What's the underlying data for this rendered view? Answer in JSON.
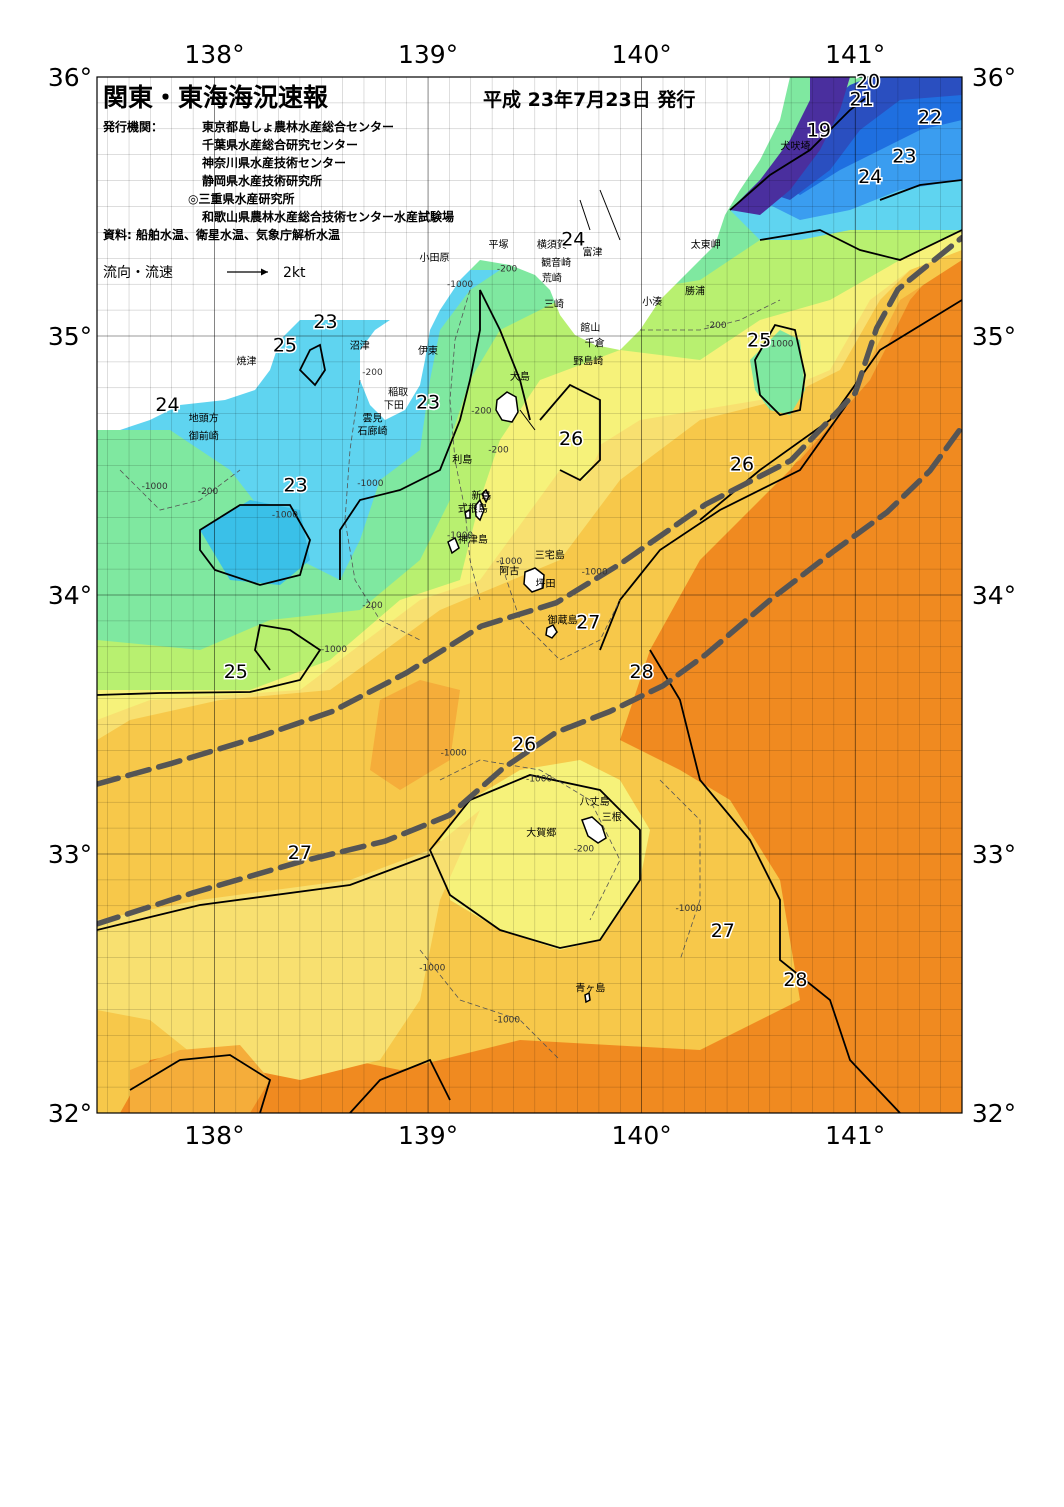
{
  "header": {
    "title": "関東・東海海況速報",
    "date": "平成 23年7月23日 発行",
    "org_label": "発行機関：",
    "orgs": [
      "東京都島しょ農林水産総合センター",
      "千葉県水産総合研究センター",
      "神奈川県水産技術センター",
      "静岡県水産技術研究所",
      "◎三重県水産研究所",
      "和歌山県農林水産総合技術センター水産試験場"
    ],
    "source": "資料: 船舶水温、衛星水温、気象庁解析水温",
    "legend_label": "流向・流速",
    "legend_speed": "2kt"
  },
  "axes": {
    "lon_labels": [
      "138°",
      "139°",
      "140°",
      "141°"
    ],
    "lat_labels": [
      "36°",
      "35°",
      "34°",
      "33°",
      "32°"
    ],
    "lon_range": [
      137.45,
      141.5
    ],
    "lat_range": [
      32.0,
      36.0
    ]
  },
  "places": [
    {
      "name": "犬吠埼",
      "lon": 140.72,
      "lat": 35.72
    },
    {
      "name": "太東岬",
      "lon": 140.3,
      "lat": 35.34
    },
    {
      "name": "勝浦",
      "lon": 140.25,
      "lat": 35.16
    },
    {
      "name": "小湊",
      "lon": 140.05,
      "lat": 35.12
    },
    {
      "name": "富津",
      "lon": 139.77,
      "lat": 35.31
    },
    {
      "name": "横須賀",
      "lon": 139.58,
      "lat": 35.34
    },
    {
      "name": "平塚",
      "lon": 139.33,
      "lat": 35.34
    },
    {
      "name": "小田原",
      "lon": 139.03,
      "lat": 35.29
    },
    {
      "name": "観音崎",
      "lon": 139.6,
      "lat": 35.27
    },
    {
      "name": "荒崎",
      "lon": 139.58,
      "lat": 35.21
    },
    {
      "name": "三崎",
      "lon": 139.59,
      "lat": 35.11
    },
    {
      "name": "館山",
      "lon": 139.76,
      "lat": 35.02
    },
    {
      "name": "千倉",
      "lon": 139.78,
      "lat": 34.96
    },
    {
      "name": "野島崎",
      "lon": 139.75,
      "lat": 34.89
    },
    {
      "name": "沼津",
      "lon": 138.68,
      "lat": 34.95
    },
    {
      "name": "伊東",
      "lon": 139.0,
      "lat": 34.93
    },
    {
      "name": "焼津",
      "lon": 138.15,
      "lat": 34.89
    },
    {
      "name": "大島",
      "lon": 139.43,
      "lat": 34.83
    },
    {
      "name": "稲取",
      "lon": 138.86,
      "lat": 34.77
    },
    {
      "name": "下田",
      "lon": 138.84,
      "lat": 34.72
    },
    {
      "name": "雲見",
      "lon": 138.74,
      "lat": 34.67
    },
    {
      "name": "石廊崎",
      "lon": 138.74,
      "lat": 34.62
    },
    {
      "name": "地頭方",
      "lon": 137.95,
      "lat": 34.67
    },
    {
      "name": "御前崎",
      "lon": 137.95,
      "lat": 34.6
    },
    {
      "name": "利島",
      "lon": 139.16,
      "lat": 34.51
    },
    {
      "name": "新島",
      "lon": 139.25,
      "lat": 34.37
    },
    {
      "name": "式根島",
      "lon": 139.21,
      "lat": 34.32
    },
    {
      "name": "神津島",
      "lon": 139.21,
      "lat": 34.2
    },
    {
      "name": "三宅島",
      "lon": 139.57,
      "lat": 34.14
    },
    {
      "name": "阿古",
      "lon": 139.38,
      "lat": 34.08
    },
    {
      "name": "坪田",
      "lon": 139.55,
      "lat": 34.03
    },
    {
      "name": "御蔵島",
      "lon": 139.63,
      "lat": 33.89
    },
    {
      "name": "八丈島",
      "lon": 139.78,
      "lat": 33.19
    },
    {
      "name": "三根",
      "lon": 139.86,
      "lat": 33.13
    },
    {
      "name": "大賀郷",
      "lon": 139.53,
      "lat": 33.07
    },
    {
      "name": "青ヶ島",
      "lon": 139.76,
      "lat": 32.47
    }
  ],
  "isotherm_labels": [
    {
      "text": "20",
      "lon": 141.06,
      "lat": 35.96
    },
    {
      "text": "21",
      "lon": 141.03,
      "lat": 35.89
    },
    {
      "text": "22",
      "lon": 141.35,
      "lat": 35.82
    },
    {
      "text": "19",
      "lon": 140.83,
      "lat": 35.77
    },
    {
      "text": "23",
      "lon": 141.23,
      "lat": 35.67
    },
    {
      "text": "24",
      "lon": 141.07,
      "lat": 35.59
    },
    {
      "text": "24",
      "lon": 139.68,
      "lat": 35.35
    },
    {
      "text": "23",
      "lon": 138.52,
      "lat": 35.03
    },
    {
      "text": "25",
      "lon": 138.33,
      "lat": 34.94
    },
    {
      "text": "25",
      "lon": 140.55,
      "lat": 34.96
    },
    {
      "text": "24",
      "lon": 137.78,
      "lat": 34.71
    },
    {
      "text": "23",
      "lon": 139.0,
      "lat": 34.72
    },
    {
      "text": "26",
      "lon": 139.67,
      "lat": 34.58
    },
    {
      "text": "26",
      "lon": 140.47,
      "lat": 34.48
    },
    {
      "text": "23",
      "lon": 138.38,
      "lat": 34.4
    },
    {
      "text": "27",
      "lon": 139.75,
      "lat": 33.87
    },
    {
      "text": "25",
      "lon": 138.1,
      "lat": 33.68
    },
    {
      "text": "28",
      "lon": 140.0,
      "lat": 33.68
    },
    {
      "text": "26",
      "lon": 139.45,
      "lat": 33.4
    },
    {
      "text": "27",
      "lon": 138.4,
      "lat": 32.98
    },
    {
      "text": "27",
      "lon": 140.38,
      "lat": 32.68
    },
    {
      "text": "28",
      "lon": 140.72,
      "lat": 32.49
    }
  ],
  "depth_labels": [
    {
      "text": "-200",
      "lon": 139.37,
      "lat": 35.25
    },
    {
      "text": "-1000",
      "lon": 139.15,
      "lat": 35.19
    },
    {
      "text": "-200",
      "lon": 140.35,
      "lat": 35.03
    },
    {
      "text": "-1000",
      "lon": 140.65,
      "lat": 34.96
    },
    {
      "text": "-200",
      "lon": 138.74,
      "lat": 34.85
    },
    {
      "text": "-200",
      "lon": 139.25,
      "lat": 34.7
    },
    {
      "text": "-200",
      "lon": 139.33,
      "lat": 34.55
    },
    {
      "text": "-1000",
      "lon": 137.72,
      "lat": 34.41
    },
    {
      "text": "-200",
      "lon": 137.97,
      "lat": 34.39
    },
    {
      "text": "-1000",
      "lon": 138.33,
      "lat": 34.3
    },
    {
      "text": "-1000",
      "lon": 138.73,
      "lat": 34.42
    },
    {
      "text": "-1000",
      "lon": 139.15,
      "lat": 34.22
    },
    {
      "text": "-1000",
      "lon": 139.38,
      "lat": 34.12
    },
    {
      "text": "-1000",
      "lon": 139.78,
      "lat": 34.08
    },
    {
      "text": "-200",
      "lon": 138.74,
      "lat": 33.95
    },
    {
      "text": "-1000",
      "lon": 138.56,
      "lat": 33.78
    },
    {
      "text": "-1000",
      "lon": 139.12,
      "lat": 33.38
    },
    {
      "text": "-1000",
      "lon": 139.52,
      "lat": 33.28
    },
    {
      "text": "-200",
      "lon": 139.73,
      "lat": 33.01
    },
    {
      "text": "-1000",
      "lon": 140.22,
      "lat": 32.78
    },
    {
      "text": "-1000",
      "lon": 139.02,
      "lat": 32.55
    },
    {
      "text": "-1000",
      "lon": 139.37,
      "lat": 32.35
    }
  ],
  "kuroshio_paths": [
    {
      "name": "north-edge",
      "points": [
        [
          137.45,
          33.27
        ],
        [
          137.8,
          33.35
        ],
        [
          138.2,
          33.45
        ],
        [
          138.55,
          33.55
        ],
        [
          138.9,
          33.7
        ],
        [
          139.25,
          33.88
        ],
        [
          139.6,
          33.97
        ],
        [
          139.9,
          34.12
        ],
        [
          140.3,
          34.35
        ],
        [
          140.7,
          34.52
        ],
        [
          141.0,
          34.78
        ],
        [
          141.1,
          35.03
        ],
        [
          141.2,
          35.18
        ],
        [
          141.5,
          35.38
        ]
      ]
    },
    {
      "name": "mid-axis",
      "points": [
        [
          137.45,
          32.73
        ],
        [
          137.9,
          32.85
        ],
        [
          138.4,
          32.97
        ],
        [
          138.8,
          33.05
        ],
        [
          139.1,
          33.15
        ],
        [
          139.35,
          33.33
        ],
        [
          139.6,
          33.47
        ],
        [
          139.85,
          33.55
        ],
        [
          140.1,
          33.65
        ],
        [
          140.3,
          33.77
        ],
        [
          140.6,
          33.98
        ],
        [
          140.9,
          34.17
        ],
        [
          141.15,
          34.32
        ],
        [
          141.35,
          34.48
        ],
        [
          141.5,
          34.65
        ]
      ]
    }
  ],
  "colors": {
    "t19": "#4a2f9e",
    "t20": "#2a4fc0",
    "t21": "#1f6fe0",
    "t22": "#3a9df0",
    "t23": "#5fd4f0",
    "t24": "#7fe8a0",
    "t25": "#b8f070",
    "t26": "#f6f27a",
    "t26b": "#f8e070",
    "t27": "#f7c84a",
    "t27b": "#f5ad3a",
    "t28": "#f08a20",
    "land": "#ffffff",
    "kuroshio": "#555555"
  }
}
